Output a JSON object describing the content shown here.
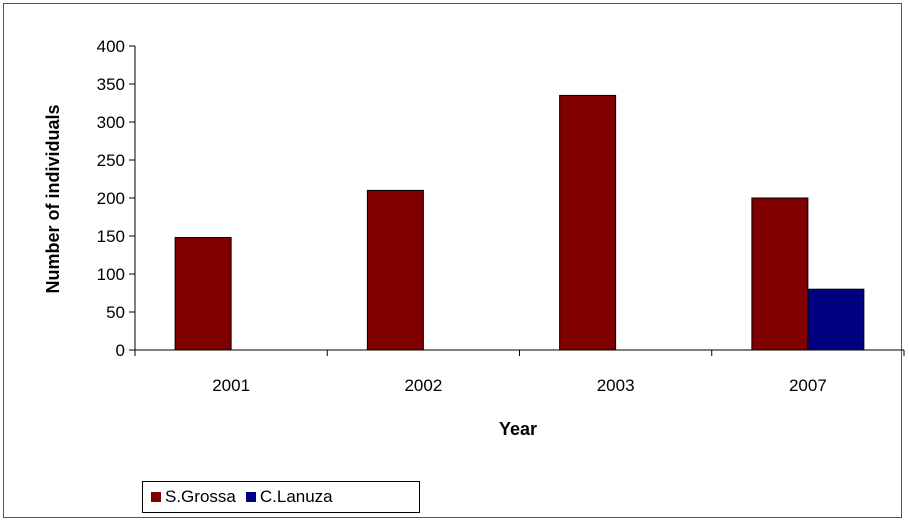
{
  "chart_data": {
    "type": "bar",
    "categories": [
      "2001",
      "2002",
      "2003",
      "2007"
    ],
    "series": [
      {
        "name": "S.Grossa",
        "values": [
          148,
          210,
          335,
          200
        ],
        "color": "#800000"
      },
      {
        "name": "C.Lanuza",
        "values": [
          null,
          null,
          null,
          80
        ],
        "color": "#000080"
      }
    ],
    "xlabel": "Year",
    "ylabel": "Number of individuals",
    "ylim": [
      0,
      400
    ],
    "yticks": [
      "0",
      "50",
      "100",
      "150",
      "200",
      "250",
      "300",
      "350",
      "400"
    ],
    "grid": false,
    "legend_position": "bottom-left"
  }
}
